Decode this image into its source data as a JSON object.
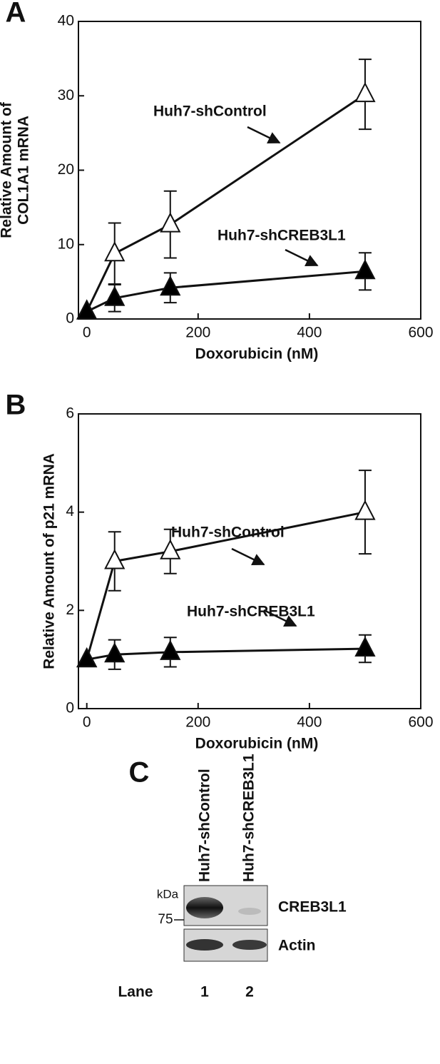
{
  "chart_data": [
    {
      "type": "line",
      "panel": "A",
      "xlabel": "Doxorubicin (nM)",
      "ylabel": [
        "Relative Amount of",
        "COL1A1 mRNA"
      ],
      "x": [
        0,
        50,
        150,
        500
      ],
      "series": [
        {
          "name": "Huh7-shControl",
          "color": "#ffffff",
          "values": [
            1,
            8.8,
            12.7,
            30.2
          ],
          "errors": [
            0,
            4.1,
            4.5,
            4.7
          ]
        },
        {
          "name": "Huh7-shCREB3L1",
          "color": "#000000",
          "values": [
            1,
            2.8,
            4.2,
            6.4
          ],
          "errors": [
            0,
            1.8,
            2.0,
            2.5
          ]
        }
      ],
      "xlim": [
        -15,
        600
      ],
      "ylim": [
        0,
        40
      ],
      "xticks": [
        0,
        200,
        400,
        600
      ],
      "yticks": [
        0,
        10,
        20,
        30,
        40
      ]
    },
    {
      "type": "line",
      "panel": "B",
      "xlabel": "Doxorubicin (nM)",
      "ylabel": [
        "Relative Amount of p21 mRNA"
      ],
      "x": [
        0,
        50,
        150,
        500
      ],
      "series": [
        {
          "name": "Huh7-shControl",
          "color": "#ffffff",
          "values": [
            1,
            3.0,
            3.2,
            4.0
          ],
          "errors": [
            0,
            0.6,
            0.45,
            0.85
          ]
        },
        {
          "name": "Huh7-shCREB3L1",
          "color": "#000000",
          "values": [
            1,
            1.1,
            1.15,
            1.22
          ],
          "errors": [
            0,
            0.3,
            0.3,
            0.28
          ]
        }
      ],
      "xlim": [
        -15,
        600
      ],
      "ylim": [
        0,
        6
      ],
      "xticks": [
        0,
        200,
        400,
        600
      ],
      "yticks": [
        0,
        2,
        4,
        6
      ]
    }
  ],
  "blot": {
    "panel": "C",
    "lanes": [
      "Huh7-shControl",
      "Huh7-shCREB3L1"
    ],
    "unit": "kDa",
    "marker": "75",
    "bands": [
      "CREB3L1",
      "Actin"
    ],
    "lane_label": "Lane",
    "lane_numbers": [
      "1",
      "2"
    ]
  }
}
